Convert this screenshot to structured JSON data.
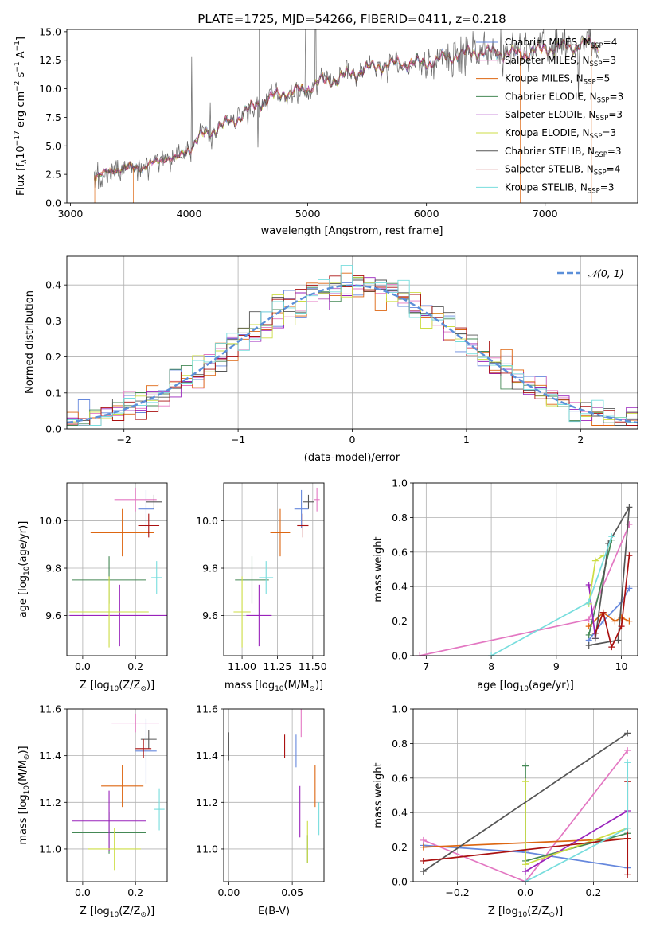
{
  "title": "PLATE=1725, MJD=54266, FIBERID=0411, z=0.218",
  "colors": {
    "Chabrier MILES": "#6688dd",
    "Salpeter MILES": "#e377c2",
    "Kroupa MILES": "#dd6611",
    "Chabrier ELODIE": "#448855",
    "Salpeter ELODIE": "#9922bb",
    "Kroupa ELODIE": "#ccdd44",
    "Chabrier STELIB": "#555555",
    "Salpeter STELIB": "#aa1111",
    "Kroupa STELIB": "#77dddd"
  },
  "chart_data": [
    {
      "id": "spectrum",
      "type": "line",
      "xlabel": "wavelength [Angstrom, rest frame]",
      "ylabel": "Flux [f",
      "ylabel_parts": [
        "Flux [f",
        "λ",
        "10",
        "−17",
        " erg cm",
        "−2",
        " s",
        "−1",
        " A",
        "−1",
        "]"
      ],
      "xlim": [
        2970,
        7780
      ],
      "ylim": [
        0,
        15.2
      ],
      "xticks": [
        3000,
        4000,
        5000,
        6000,
        7000
      ],
      "yticks": [
        0.0,
        2.5,
        5.0,
        7.5,
        10.0,
        12.5,
        15.0
      ],
      "grid": false,
      "legend_position": "right",
      "legend": [
        {
          "model": "Chabrier MILES",
          "label": "Chabrier MILES, N",
          "sub": "SSP",
          "tail": "=4"
        },
        {
          "model": "Salpeter MILES",
          "label": "Salpeter MILES, N",
          "sub": "SSP",
          "tail": "=3"
        },
        {
          "model": "Kroupa MILES",
          "label": "Kroupa MILES, N",
          "sub": "SSP",
          "tail": "=5"
        },
        {
          "model": "Chabrier ELODIE",
          "label": "Chabrier ELODIE, N",
          "sub": "SSP",
          "tail": "=3"
        },
        {
          "model": "Salpeter ELODIE",
          "label": "Salpeter ELODIE, N",
          "sub": "SSP",
          "tail": "=3"
        },
        {
          "model": "Kroupa ELODIE",
          "label": "Kroupa ELODIE, N",
          "sub": "SSP",
          "tail": "=3"
        },
        {
          "model": "Chabrier STELIB",
          "label": "Chabrier STELIB, N",
          "sub": "SSP",
          "tail": "=3"
        },
        {
          "model": "Salpeter STELIB",
          "label": "Salpeter STELIB, N",
          "sub": "SSP",
          "tail": "=4"
        },
        {
          "model": "Kroupa STELIB",
          "label": "Kroupa STELIB, N",
          "sub": "SSP",
          "tail": "=3"
        }
      ],
      "continuum": {
        "x": [
          3200,
          3300,
          3400,
          3500,
          3600,
          3700,
          3800,
          3900,
          4000,
          4100,
          4200,
          4300,
          4400,
          4500,
          4600,
          4700,
          4800,
          4900,
          5000,
          5100,
          5200,
          5400,
          5600,
          5800,
          6000,
          6200,
          6400,
          6600,
          6800,
          7000,
          7200,
          7400
        ],
        "y": [
          2.4,
          2.7,
          3.0,
          3.1,
          3.0,
          3.4,
          3.8,
          3.8,
          4.8,
          6.0,
          6.6,
          7.0,
          7.4,
          8.0,
          8.6,
          9.0,
          9.6,
          9.8,
          10.2,
          10.8,
          10.9,
          11.3,
          11.8,
          12.3,
          12.5,
          12.8,
          13.0,
          13.1,
          13.3,
          13.6,
          13.5,
          13.8
        ]
      }
    },
    {
      "id": "residuals",
      "type": "histogram",
      "xlabel": "(data-model)/error",
      "ylabel": "Normed distribution",
      "xlim": [
        -2.5,
        2.5
      ],
      "ylim": [
        0,
        0.48
      ],
      "xticks": [
        -2,
        -1,
        0,
        1,
        2
      ],
      "xtick_labels": [
        "−2",
        "−1",
        "0",
        "1",
        "2"
      ],
      "yticks": [
        0.0,
        0.1,
        0.2,
        0.3,
        0.4
      ],
      "grid": true,
      "bin_width": 0.1,
      "legend_position": "top-right",
      "legend_label": "𝒩(0, 1)",
      "reference_curve": "N(0,1)",
      "reference_color": "#5b8fd9"
    },
    {
      "id": "age-vs-Z",
      "type": "scatter",
      "xlabel": "Z [log",
      "xlabel_parts": [
        "Z [log",
        "10",
        "(Z/Z",
        "⊙",
        ")]"
      ],
      "ylabel": "age  [log",
      "ylabel_parts": [
        "age  [log",
        "10",
        "(age/yr)]"
      ],
      "xlim": [
        -0.06,
        0.32
      ],
      "ylim": [
        9.43,
        10.16
      ],
      "xticks": [
        0.0,
        0.2
      ],
      "yticks": [
        9.6,
        9.8,
        10.0
      ],
      "grid": true,
      "points": [
        {
          "model": "Chabrier MILES",
          "x": 0.24,
          "y": 10.05,
          "xerr": 0.03,
          "yerr": 0.08
        },
        {
          "model": "Salpeter MILES",
          "x": 0.2,
          "y": 10.09,
          "xerr": 0.08,
          "yerr": 0.05
        },
        {
          "model": "Kroupa MILES",
          "x": 0.15,
          "y": 9.95,
          "xerr": 0.12,
          "yerr": 0.1
        },
        {
          "model": "Chabrier ELODIE",
          "x": 0.1,
          "y": 9.75,
          "xerr": 0.14,
          "yerr": 0.1
        },
        {
          "model": "Salpeter ELODIE",
          "x": 0.14,
          "y": 9.6,
          "xerr": 0.19,
          "yerr": 0.13
        },
        {
          "model": "Kroupa ELODIE",
          "x": 0.1,
          "y": 9.615,
          "xerr": 0.15,
          "yerr": 0.15
        },
        {
          "model": "Chabrier STELIB",
          "x": 0.27,
          "y": 10.08,
          "xerr": 0.03,
          "yerr": 0.03
        },
        {
          "model": "Salpeter STELIB",
          "x": 0.25,
          "y": 9.98,
          "xerr": 0.04,
          "yerr": 0.05
        },
        {
          "model": "Kroupa STELIB",
          "x": 0.28,
          "y": 9.76,
          "xerr": 0.02,
          "yerr": 0.07
        }
      ]
    },
    {
      "id": "age-vs-mass",
      "type": "scatter",
      "xlabel": "mass [log",
      "xlabel_parts": [
        "mass [log",
        "10",
        "(M/M",
        "⊙",
        ")]"
      ],
      "ylabel": "",
      "xlim": [
        10.87,
        11.58
      ],
      "ylim": [
        9.43,
        10.16
      ],
      "xticks": [
        11.0,
        11.25,
        11.5
      ],
      "xtick_labels": [
        "11.00",
        "11.25",
        "11.50"
      ],
      "yticks": [
        9.6,
        9.8,
        10.0
      ],
      "grid": true,
      "points": [
        {
          "model": "Chabrier MILES",
          "x": 11.42,
          "y": 10.05,
          "xerr": 0.05,
          "yerr": 0.08
        },
        {
          "model": "Salpeter MILES",
          "x": 11.53,
          "y": 10.09,
          "xerr": 0.02,
          "yerr": 0.05
        },
        {
          "model": "Kroupa MILES",
          "x": 11.27,
          "y": 9.95,
          "xerr": 0.07,
          "yerr": 0.1
        },
        {
          "model": "Chabrier ELODIE",
          "x": 11.07,
          "y": 9.75,
          "xerr": 0.12,
          "yerr": 0.1
        },
        {
          "model": "Salpeter ELODIE",
          "x": 11.12,
          "y": 9.6,
          "xerr": 0.09,
          "yerr": 0.13
        },
        {
          "model": "Kroupa ELODIE",
          "x": 11.0,
          "y": 9.615,
          "xerr": 0.06,
          "yerr": 0.15
        },
        {
          "model": "Chabrier STELIB",
          "x": 11.47,
          "y": 10.08,
          "xerr": 0.04,
          "yerr": 0.03
        },
        {
          "model": "Salpeter STELIB",
          "x": 11.43,
          "y": 9.98,
          "xerr": 0.04,
          "yerr": 0.05
        },
        {
          "model": "Kroupa STELIB",
          "x": 11.17,
          "y": 9.76,
          "xerr": 0.05,
          "yerr": 0.07
        }
      ]
    },
    {
      "id": "mass-vs-Z",
      "type": "scatter",
      "xlabel": "Z [log",
      "xlabel_parts": [
        "Z [log",
        "10",
        "(Z/Z",
        "⊙",
        ")]"
      ],
      "ylabel": "mass [log",
      "ylabel_parts": [
        "mass [log",
        "10",
        "(M/M",
        "⊙",
        ")]"
      ],
      "xlim": [
        -0.06,
        0.32
      ],
      "ylim": [
        10.86,
        11.6
      ],
      "xticks": [
        0.0,
        0.2
      ],
      "yticks": [
        11.0,
        11.2,
        11.4,
        11.6
      ],
      "grid": true,
      "points": [
        {
          "model": "Chabrier MILES",
          "x": 0.24,
          "y": 11.42,
          "xerr": 0.04,
          "yerr": 0.14
        },
        {
          "model": "Salpeter MILES",
          "x": 0.2,
          "y": 11.54,
          "xerr": 0.09,
          "yerr": 0.04
        },
        {
          "model": "Kroupa MILES",
          "x": 0.15,
          "y": 11.27,
          "xerr": 0.08,
          "yerr": 0.09
        },
        {
          "model": "Chabrier ELODIE",
          "x": 0.1,
          "y": 11.07,
          "xerr": 0.14,
          "yerr": 0.09
        },
        {
          "model": "Salpeter ELODIE",
          "x": 0.1,
          "y": 11.12,
          "xerr": 0.14,
          "yerr": 0.13
        },
        {
          "model": "Kroupa ELODIE",
          "x": 0.12,
          "y": 11.0,
          "xerr": 0.1,
          "yerr": 0.09
        },
        {
          "model": "Chabrier STELIB",
          "x": 0.25,
          "y": 11.47,
          "xerr": 0.03,
          "yerr": 0.04
        },
        {
          "model": "Salpeter STELIB",
          "x": 0.23,
          "y": 11.43,
          "xerr": 0.03,
          "yerr": 0.04
        },
        {
          "model": "Kroupa STELIB",
          "x": 0.29,
          "y": 11.17,
          "xerr": 0.02,
          "yerr": 0.09
        }
      ]
    },
    {
      "id": "mass-vs-ebv",
      "type": "scatter",
      "xlabel": "E(B-V)",
      "ylabel": "",
      "xlim": [
        -0.004,
        0.075
      ],
      "ylim": [
        10.86,
        11.6
      ],
      "xticks": [
        0.0,
        0.05
      ],
      "xtick_labels": [
        "0.00",
        "0.05"
      ],
      "yticks": [
        11.0,
        11.2,
        11.4,
        11.6
      ],
      "grid": true,
      "points": [
        {
          "model": "Chabrier MILES",
          "x": 0.053,
          "y": 11.42,
          "yerr": 0.07
        },
        {
          "model": "Salpeter MILES",
          "x": 0.057,
          "y": 11.54,
          "yerr": 0.06
        },
        {
          "model": "Kroupa MILES",
          "x": 0.068,
          "y": 11.27,
          "yerr": 0.09
        },
        {
          "model": "Chabrier ELODIE",
          "x": 0.062,
          "y": 11.0,
          "yerr": 0.06
        },
        {
          "model": "Salpeter ELODIE",
          "x": 0.056,
          "y": 11.16,
          "yerr": 0.11
        },
        {
          "model": "Kroupa ELODIE",
          "x": 0.062,
          "y": 11.03,
          "yerr": 0.09
        },
        {
          "model": "Chabrier STELIB",
          "x": 0.0,
          "y": 11.44,
          "yerr": 0.06
        },
        {
          "model": "Salpeter STELIB",
          "x": 0.044,
          "y": 11.44,
          "yerr": 0.05
        },
        {
          "model": "Kroupa STELIB",
          "x": 0.071,
          "y": 11.13,
          "yerr": 0.07
        }
      ]
    },
    {
      "id": "weight-vs-age",
      "type": "line",
      "xlabel": "age  [log",
      "xlabel_parts": [
        "age  [log",
        "10",
        "(age/yr)]"
      ],
      "ylabel": "mass weight",
      "xlim": [
        6.8,
        10.25
      ],
      "ylim": [
        0,
        1.0
      ],
      "xticks": [
        7,
        8,
        9,
        10
      ],
      "yticks": [
        0.0,
        0.2,
        0.4,
        0.6,
        0.8,
        1.0
      ],
      "grid": true,
      "series": [
        {
          "model": "Chabrier MILES",
          "points": [
            [
              9.5,
              0.09
            ],
            [
              9.72,
              0.2
            ],
            [
              10.0,
              0.31
            ],
            [
              10.12,
              0.39
            ]
          ]
        },
        {
          "model": "Salpeter MILES",
          "points": [
            [
              6.9,
              0.0
            ],
            [
              9.5,
              0.21
            ],
            [
              10.12,
              0.76
            ]
          ]
        },
        {
          "model": "Kroupa MILES",
          "points": [
            [
              9.5,
              0.17
            ],
            [
              9.72,
              0.25
            ],
            [
              9.9,
              0.2
            ],
            [
              10.0,
              0.22
            ],
            [
              10.12,
              0.2
            ]
          ]
        },
        {
          "model": "Chabrier ELODIE",
          "points": [
            [
              9.5,
              0.12
            ],
            [
              9.85,
              0.67
            ]
          ]
        },
        {
          "model": "Salpeter ELODIE",
          "points": [
            [
              9.5,
              0.41
            ],
            [
              9.6,
              0.1
            ]
          ]
        },
        {
          "model": "Kroupa ELODIE",
          "points": [
            [
              9.5,
              0.3
            ],
            [
              9.6,
              0.55
            ],
            [
              9.72,
              0.58
            ]
          ]
        },
        {
          "model": "Chabrier STELIB",
          "points": [
            [
              9.5,
              0.06
            ],
            [
              9.95,
              0.09
            ],
            [
              10.12,
              0.86
            ],
            [
              9.8,
              0.65
            ],
            [
              9.6,
              0.1
            ]
          ]
        },
        {
          "model": "Salpeter STELIB",
          "points": [
            [
              9.6,
              0.13
            ],
            [
              9.72,
              0.25
            ],
            [
              9.85,
              0.05
            ],
            [
              10.0,
              0.17
            ],
            [
              10.12,
              0.58
            ]
          ]
        },
        {
          "model": "Kroupa STELIB",
          "points": [
            [
              8.0,
              0.0
            ],
            [
              9.5,
              0.31
            ],
            [
              9.85,
              0.69
            ]
          ]
        }
      ]
    },
    {
      "id": "weight-vs-Z",
      "type": "line",
      "xlabel": "Z [log",
      "xlabel_parts": [
        "Z [log",
        "10",
        "(Z/Z",
        "⊙",
        ")]"
      ],
      "ylabel": "mass weight",
      "xlim": [
        -0.33,
        0.33
      ],
      "ylim": [
        0,
        1.0
      ],
      "xticks": [
        -0.2,
        0.0,
        0.2
      ],
      "xtick_labels": [
        "−0.2",
        "0.0",
        "0.2"
      ],
      "yticks": [
        0.0,
        0.2,
        0.4,
        0.6,
        0.8,
        1.0
      ],
      "grid": true,
      "series": [
        {
          "model": "Chabrier MILES",
          "points": [
            [
              -0.3,
              0.21
            ],
            [
              0.0,
              0.17
            ],
            [
              0.3,
              0.08
            ]
          ]
        },
        {
          "model": "Salpeter MILES",
          "points": [
            [
              -0.3,
              0.24
            ],
            [
              0.0,
              0.0
            ],
            [
              0.3,
              0.76
            ]
          ]
        },
        {
          "model": "Kroupa MILES",
          "points": [
            [
              -0.3,
              0.2
            ],
            [
              0.3,
              0.25
            ]
          ]
        },
        {
          "model": "Chabrier ELODIE",
          "points": [
            [
              0.0,
              0.67
            ],
            [
              0.0,
              0.12
            ],
            [
              0.3,
              0.28
            ]
          ]
        },
        {
          "model": "Salpeter ELODIE",
          "points": [
            [
              0.0,
              0.06
            ],
            [
              0.3,
              0.41
            ]
          ]
        },
        {
          "model": "Kroupa ELODIE",
          "points": [
            [
              0.0,
              0.58
            ],
            [
              0.0,
              0.1
            ],
            [
              0.3,
              0.31
            ]
          ]
        },
        {
          "model": "Chabrier STELIB",
          "points": [
            [
              -0.3,
              0.06
            ],
            [
              0.3,
              0.86
            ]
          ]
        },
        {
          "model": "Salpeter STELIB",
          "points": [
            [
              -0.3,
              0.12
            ],
            [
              0.3,
              0.25
            ],
            [
              0.3,
              0.04
            ],
            [
              0.3,
              0.58
            ]
          ]
        },
        {
          "model": "Kroupa STELIB",
          "points": [
            [
              0.0,
              0.0
            ],
            [
              0.3,
              0.31
            ],
            [
              0.3,
              0.69
            ]
          ]
        }
      ]
    }
  ]
}
